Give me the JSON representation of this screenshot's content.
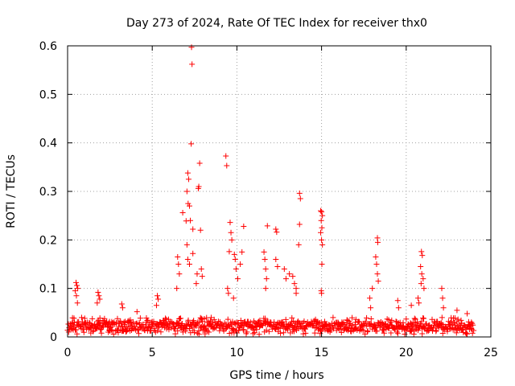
{
  "chart_data": {
    "type": "scatter",
    "title": "Day 273 of 2024, Rate Of TEC Index for receiver thx0",
    "xlabel": "GPS time / hours",
    "ylabel": "ROTI / TECUs",
    "xlim": [
      0,
      25
    ],
    "ylim": [
      0,
      0.6
    ],
    "xticks": [
      0,
      5,
      10,
      15,
      20,
      25
    ],
    "xtick_labels": [
      "0",
      "5",
      "10",
      "15",
      "20",
      "25"
    ],
    "yticks": [
      0,
      0.1,
      0.2,
      0.3,
      0.4,
      0.5,
      0.6
    ],
    "ytick_labels": [
      "0",
      "0.1",
      "0.2",
      "0.3",
      "0.4",
      "0.5",
      "0.6"
    ],
    "grid": true,
    "marker": "+",
    "color": "#ff0000",
    "series": [
      {
        "name": "thx0",
        "points": [
          [
            7.32,
            0.597
          ],
          [
            7.35,
            0.562
          ],
          [
            7.3,
            0.398
          ],
          [
            7.8,
            0.358
          ],
          [
            7.75,
            0.31
          ],
          [
            7.72,
            0.306
          ],
          [
            7.1,
            0.338
          ],
          [
            7.15,
            0.325
          ],
          [
            7.05,
            0.3
          ],
          [
            7.2,
            0.27
          ],
          [
            7.12,
            0.275
          ],
          [
            7.25,
            0.24
          ],
          [
            6.8,
            0.256
          ],
          [
            7.0,
            0.239
          ],
          [
            7.4,
            0.222
          ],
          [
            7.85,
            0.22
          ],
          [
            7.05,
            0.19
          ],
          [
            7.4,
            0.172
          ],
          [
            7.1,
            0.16
          ],
          [
            7.2,
            0.15
          ],
          [
            7.65,
            0.13
          ],
          [
            7.9,
            0.14
          ],
          [
            7.95,
            0.125
          ],
          [
            7.6,
            0.11
          ],
          [
            6.5,
            0.165
          ],
          [
            6.55,
            0.15
          ],
          [
            6.6,
            0.13
          ],
          [
            6.45,
            0.1
          ],
          [
            9.35,
            0.373
          ],
          [
            9.4,
            0.353
          ],
          [
            9.6,
            0.236
          ],
          [
            9.65,
            0.215
          ],
          [
            9.7,
            0.2
          ],
          [
            9.55,
            0.176
          ],
          [
            9.85,
            0.17
          ],
          [
            9.9,
            0.16
          ],
          [
            9.95,
            0.14
          ],
          [
            10.05,
            0.12
          ],
          [
            10.4,
            0.228
          ],
          [
            10.3,
            0.175
          ],
          [
            10.2,
            0.15
          ],
          [
            9.45,
            0.1
          ],
          [
            9.5,
            0.09
          ],
          [
            9.8,
            0.08
          ],
          [
            11.8,
            0.229
          ],
          [
            11.6,
            0.175
          ],
          [
            11.65,
            0.16
          ],
          [
            11.7,
            0.14
          ],
          [
            11.75,
            0.12
          ],
          [
            11.7,
            0.1
          ],
          [
            12.3,
            0.222
          ],
          [
            12.35,
            0.216
          ],
          [
            12.3,
            0.16
          ],
          [
            12.4,
            0.145
          ],
          [
            12.8,
            0.14
          ],
          [
            12.9,
            0.12
          ],
          [
            13.1,
            0.13
          ],
          [
            13.3,
            0.125
          ],
          [
            13.4,
            0.11
          ],
          [
            13.5,
            0.1
          ],
          [
            13.7,
            0.296
          ],
          [
            13.75,
            0.285
          ],
          [
            13.7,
            0.232
          ],
          [
            13.65,
            0.19
          ],
          [
            13.5,
            0.09
          ],
          [
            14.95,
            0.26
          ],
          [
            15.0,
            0.258
          ],
          [
            15.05,
            0.25
          ],
          [
            14.98,
            0.24
          ],
          [
            15.02,
            0.225
          ],
          [
            14.95,
            0.215
          ],
          [
            15.0,
            0.2
          ],
          [
            15.05,
            0.19
          ],
          [
            15.02,
            0.15
          ],
          [
            14.98,
            0.095
          ],
          [
            15.0,
            0.09
          ],
          [
            18.3,
            0.204
          ],
          [
            18.32,
            0.195
          ],
          [
            18.2,
            0.165
          ],
          [
            18.25,
            0.15
          ],
          [
            18.3,
            0.13
          ],
          [
            18.35,
            0.115
          ],
          [
            18.0,
            0.1
          ],
          [
            17.85,
            0.08
          ],
          [
            17.9,
            0.06
          ],
          [
            20.9,
            0.176
          ],
          [
            20.95,
            0.168
          ],
          [
            20.85,
            0.145
          ],
          [
            20.92,
            0.13
          ],
          [
            21.0,
            0.12
          ],
          [
            20.88,
            0.11
          ],
          [
            21.05,
            0.1
          ],
          [
            20.7,
            0.08
          ],
          [
            20.75,
            0.07
          ],
          [
            22.1,
            0.1
          ],
          [
            22.15,
            0.08
          ],
          [
            22.2,
            0.06
          ],
          [
            0.5,
            0.112
          ],
          [
            0.55,
            0.106
          ],
          [
            0.6,
            0.1
          ],
          [
            0.45,
            0.095
          ],
          [
            0.52,
            0.085
          ],
          [
            0.58,
            0.07
          ],
          [
            1.8,
            0.092
          ],
          [
            1.85,
            0.085
          ],
          [
            1.9,
            0.078
          ],
          [
            1.75,
            0.07
          ],
          [
            3.2,
            0.068
          ],
          [
            3.25,
            0.06
          ],
          [
            5.3,
            0.085
          ],
          [
            5.35,
            0.078
          ],
          [
            5.25,
            0.065
          ],
          [
            19.5,
            0.075
          ],
          [
            19.55,
            0.06
          ],
          [
            20.3,
            0.065
          ],
          [
            23.0,
            0.055
          ],
          [
            23.6,
            0.048
          ],
          [
            4.1,
            0.052
          ],
          [
            16.5,
            0.035
          ],
          [
            17.0,
            0.03
          ],
          [
            16.0,
            0.028
          ]
        ]
      }
    ]
  }
}
